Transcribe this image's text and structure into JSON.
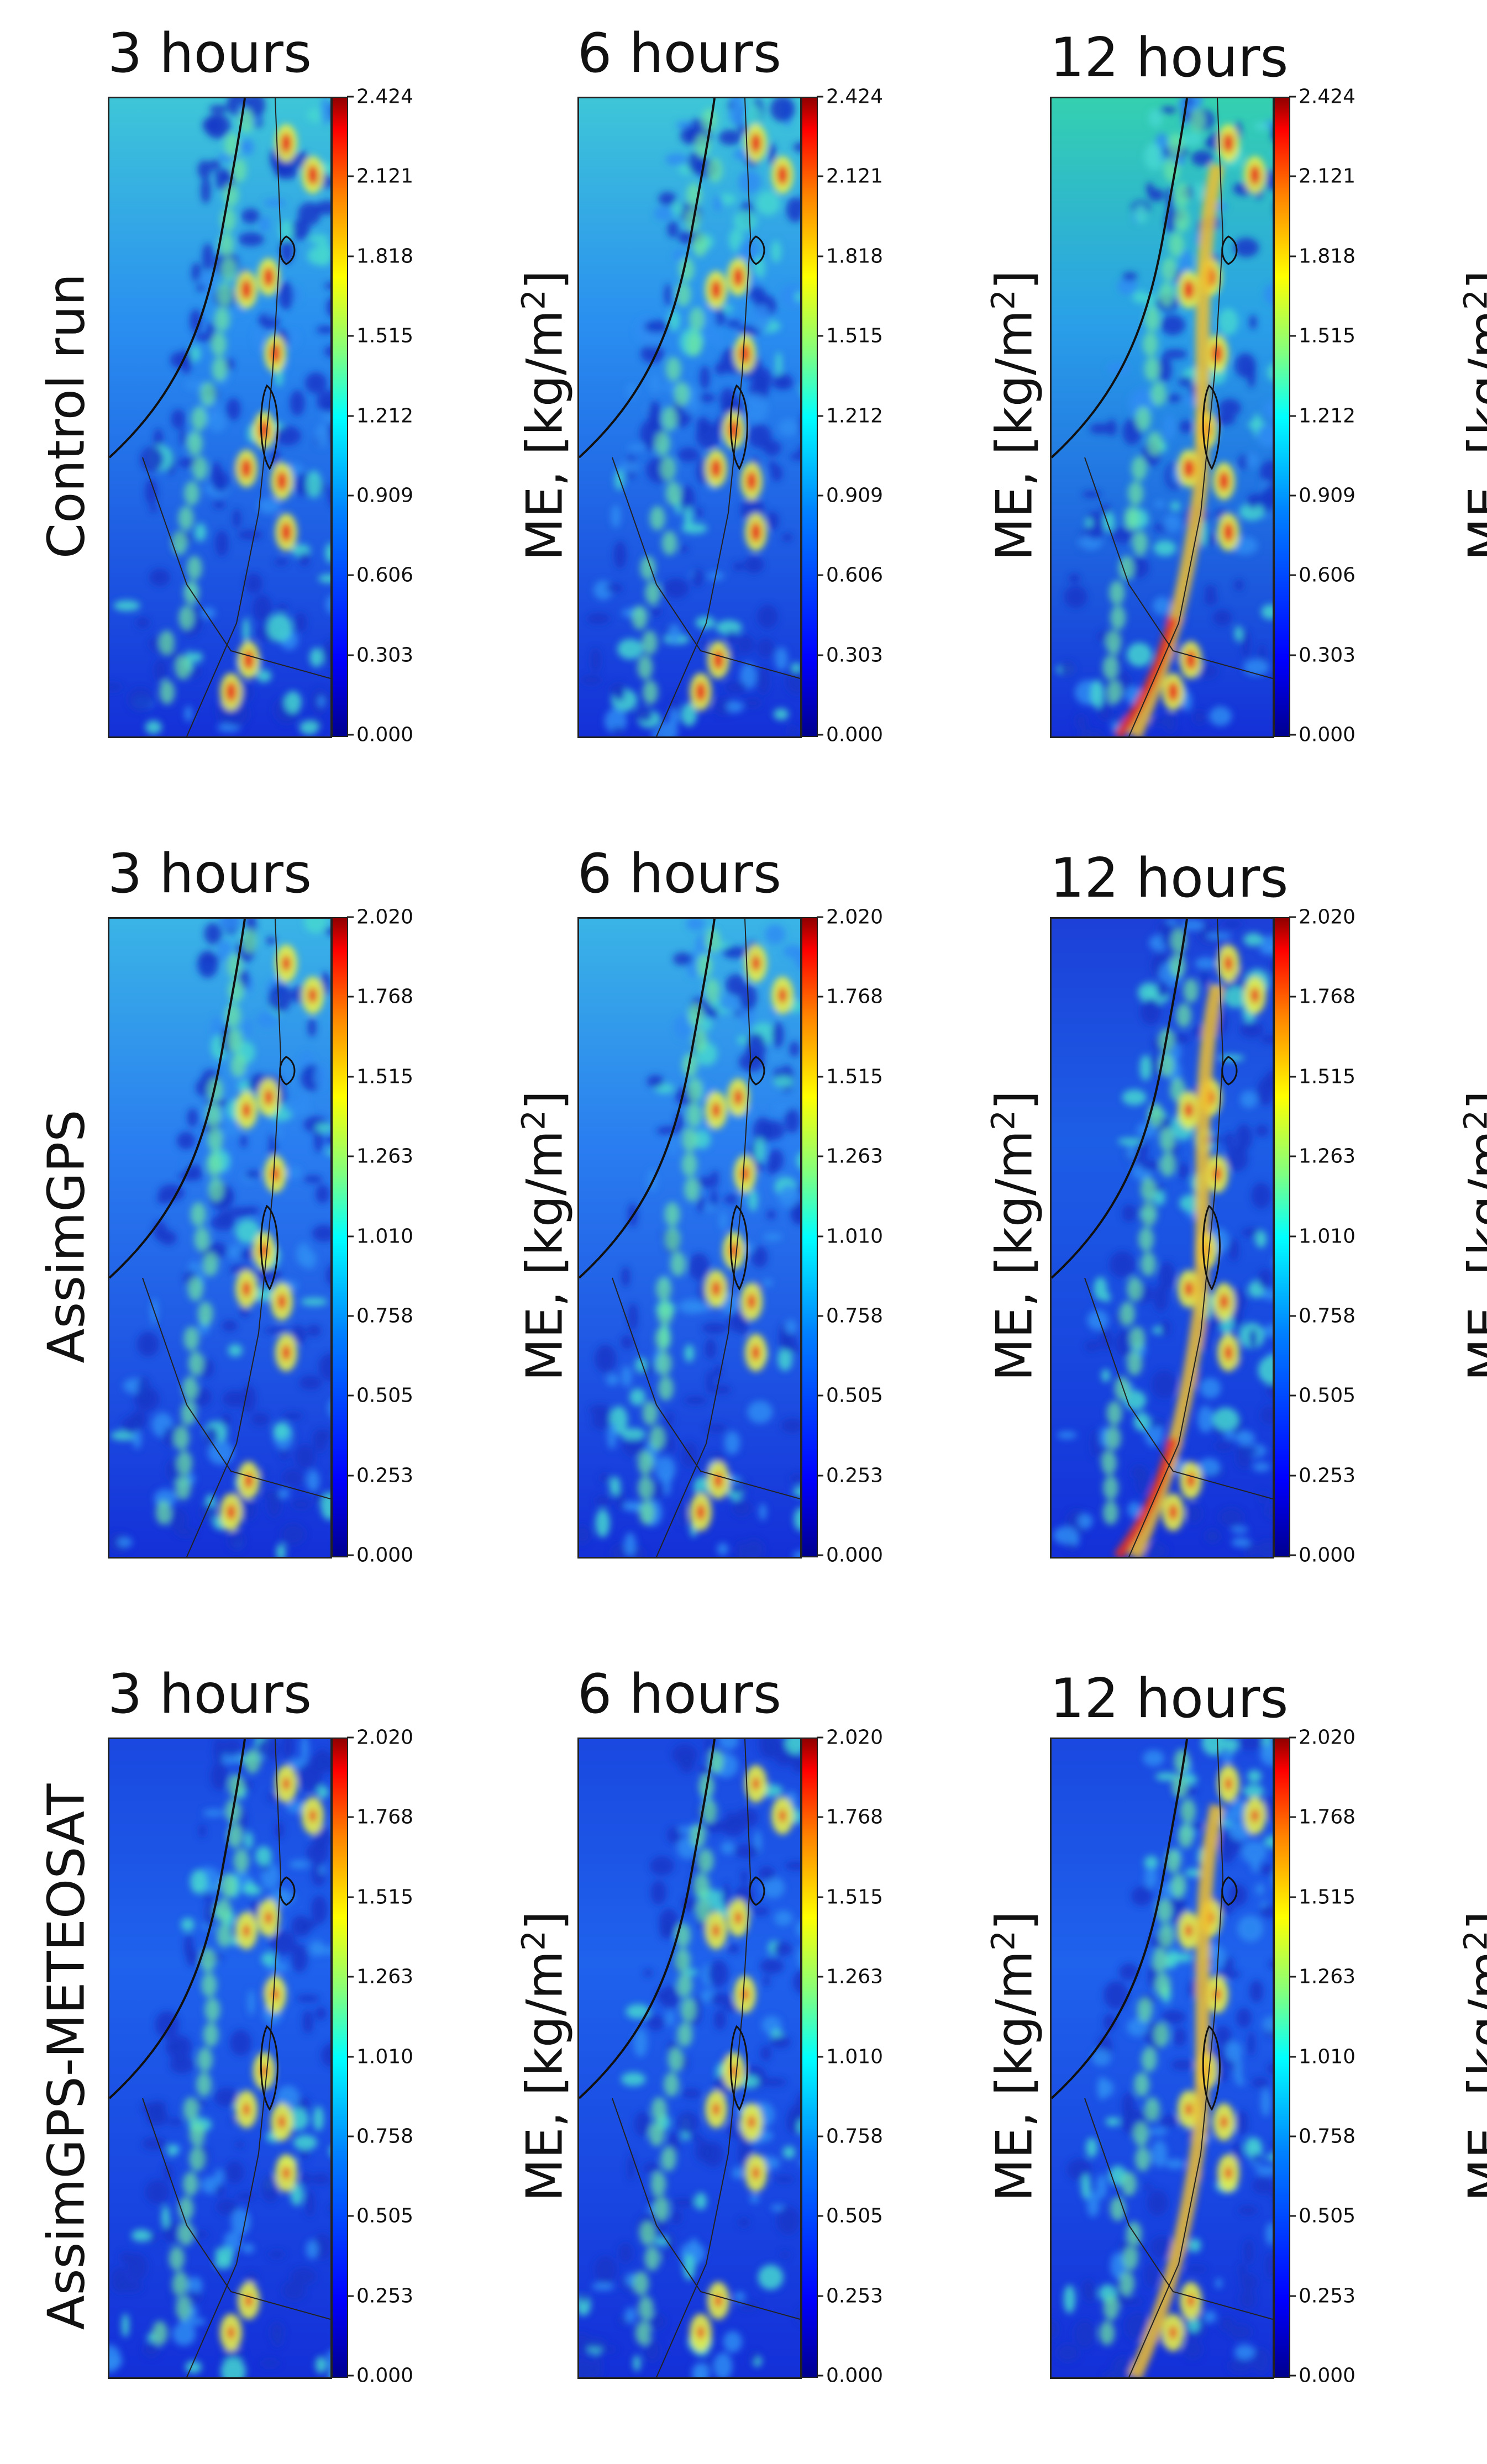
{
  "chart_data": {
    "type": "heatmap",
    "layout": "3x3 grid of map panels",
    "colormap": "jet",
    "colorbar_label": "ME, [kg/m2]",
    "colorbar_label_parts": {
      "prefix": "ME, [kg/m",
      "sup": "2",
      "suffix": "]"
    },
    "columns": [
      "3 hours",
      "6 hours",
      "12 hours"
    ],
    "rows": [
      {
        "name": "Control run",
        "colorbar_ticks": [
          "2.424",
          "2.121",
          "1.818",
          "1.515",
          "1.212",
          "0.909",
          "0.606",
          "0.303",
          "0.000"
        ],
        "vmin": 0.0,
        "vmax": 2.424
      },
      {
        "name": "AssimGPS",
        "colorbar_ticks": [
          "2.020",
          "1.768",
          "1.515",
          "1.263",
          "1.010",
          "0.758",
          "0.505",
          "0.253",
          "0.000"
        ],
        "vmin": 0.0,
        "vmax": 2.02
      },
      {
        "name": "AssimGPS-METEOSAT",
        "colorbar_ticks": [
          "2.020",
          "1.768",
          "1.515",
          "1.263",
          "1.010",
          "0.758",
          "0.505",
          "0.253",
          "0.000"
        ],
        "vmin": 0.0,
        "vmax": 2.02
      }
    ],
    "panels": [
      {
        "row": "Control run",
        "title": "3 hours"
      },
      {
        "row": "Control run",
        "title": "6 hours"
      },
      {
        "row": "Control run",
        "title": "12 hours"
      },
      {
        "row": "AssimGPS",
        "title": "3 hours"
      },
      {
        "row": "AssimGPS",
        "title": "6 hours"
      },
      {
        "row": "AssimGPS",
        "title": "12 hours"
      },
      {
        "row": "AssimGPS-METEOSAT",
        "title": "3 hours"
      },
      {
        "row": "AssimGPS-METEOSAT",
        "title": "6 hours"
      },
      {
        "row": "AssimGPS-METEOSAT",
        "title": "12 hours"
      }
    ]
  }
}
